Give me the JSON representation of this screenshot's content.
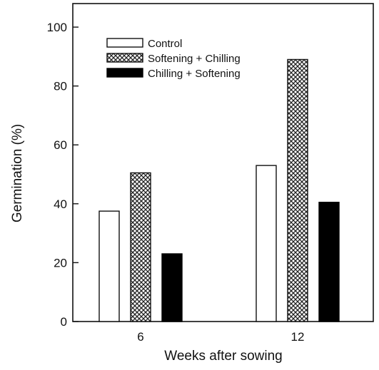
{
  "chart_data": {
    "type": "bar",
    "xlabel": "Weeks after sowing",
    "ylabel": "Germination (%)",
    "ylim": [
      0,
      108
    ],
    "yticks": [
      0,
      20,
      40,
      60,
      80,
      100
    ],
    "categories": [
      "6",
      "12"
    ],
    "series": [
      {
        "name": "Control",
        "values": [
          37.5,
          53
        ],
        "fill": "white"
      },
      {
        "name": "Softening + Chilling",
        "values": [
          50.5,
          89
        ],
        "fill": "crosshatch"
      },
      {
        "name": "Chilling + Softening",
        "values": [
          23,
          40.5
        ],
        "fill": "black"
      }
    ],
    "legend_position": "top-left",
    "grid": false
  }
}
